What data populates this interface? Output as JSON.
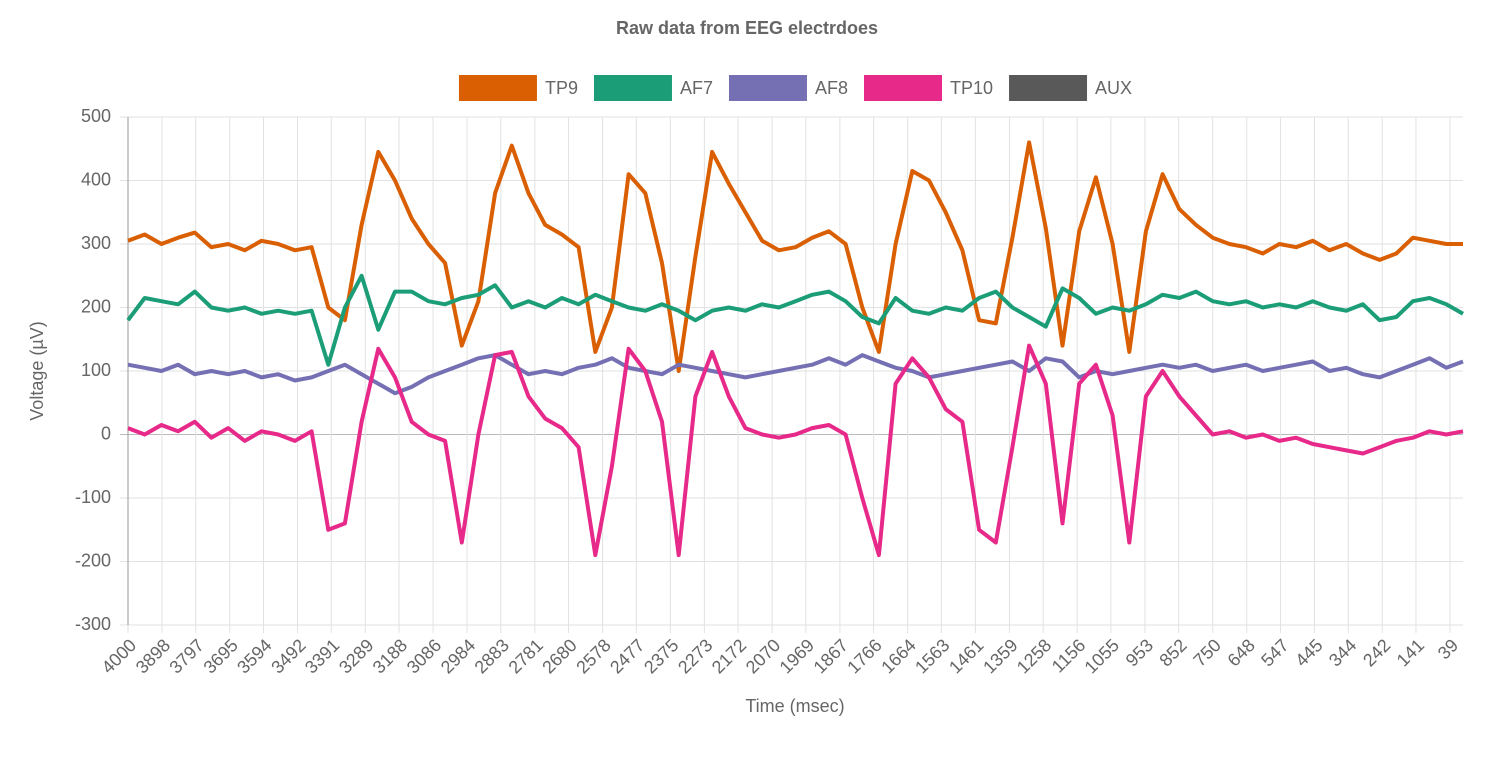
{
  "chart_data": {
    "type": "line",
    "title": "Raw data from EEG electrdoes",
    "x_label": "Time (msec)",
    "y_label": "Voltage (µV)",
    "x": [
      4000,
      3950,
      3900,
      3850,
      3800,
      3750,
      3700,
      3650,
      3600,
      3550,
      3500,
      3450,
      3400,
      3350,
      3300,
      3250,
      3200,
      3150,
      3100,
      3050,
      3000,
      2950,
      2900,
      2850,
      2800,
      2750,
      2700,
      2650,
      2600,
      2550,
      2500,
      2450,
      2400,
      2350,
      2300,
      2250,
      2200,
      2150,
      2100,
      2050,
      2000,
      1950,
      1900,
      1850,
      1800,
      1750,
      1700,
      1650,
      1600,
      1550,
      1500,
      1450,
      1400,
      1350,
      1300,
      1250,
      1200,
      1150,
      1100,
      1050,
      1000,
      950,
      900,
      850,
      800,
      750,
      700,
      650,
      600,
      550,
      500,
      450,
      400,
      350,
      300,
      250,
      200,
      150,
      100,
      50,
      0
    ],
    "xlim": [
      4000,
      0
    ],
    "xticks": [
      4000,
      3898,
      3797,
      3695,
      3594,
      3492,
      3391,
      3289,
      3188,
      3086,
      2984,
      2883,
      2781,
      2680,
      2578,
      2477,
      2375,
      2273,
      2172,
      2070,
      1969,
      1867,
      1766,
      1664,
      1563,
      1461,
      1359,
      1258,
      1156,
      1055,
      953,
      852,
      750,
      648,
      547,
      445,
      344,
      242,
      141,
      39
    ],
    "ylim": [
      -300,
      500
    ],
    "yticks": [
      -300,
      -200,
      -100,
      0,
      100,
      200,
      300,
      400,
      500
    ],
    "grid": true,
    "legend": "top",
    "series": [
      {
        "name": "TP9",
        "color": "#d95f02",
        "values": [
          305,
          315,
          300,
          310,
          318,
          295,
          300,
          290,
          305,
          300,
          290,
          295,
          200,
          180,
          330,
          445,
          400,
          340,
          300,
          270,
          140,
          210,
          380,
          455,
          380,
          330,
          315,
          295,
          130,
          200,
          410,
          380,
          270,
          100,
          280,
          445,
          395,
          350,
          305,
          290,
          295,
          310,
          320,
          300,
          200,
          130,
          300,
          415,
          400,
          350,
          290,
          180,
          175,
          310,
          460,
          325,
          140,
          320,
          405,
          300,
          130,
          320,
          410,
          355,
          330,
          310,
          300,
          295,
          285,
          300,
          295,
          305,
          290,
          300,
          285,
          275,
          285,
          310,
          305,
          300,
          300
        ]
      },
      {
        "name": "AF7",
        "color": "#1b9e77",
        "values": [
          180,
          215,
          210,
          205,
          225,
          200,
          195,
          200,
          190,
          195,
          190,
          195,
          110,
          200,
          250,
          165,
          225,
          225,
          210,
          205,
          215,
          220,
          235,
          200,
          210,
          200,
          215,
          205,
          220,
          210,
          200,
          195,
          205,
          195,
          180,
          195,
          200,
          195,
          205,
          200,
          210,
          220,
          225,
          210,
          185,
          175,
          215,
          195,
          190,
          200,
          195,
          215,
          225,
          200,
          185,
          170,
          230,
          215,
          190,
          200,
          195,
          205,
          220,
          215,
          225,
          210,
          205,
          210,
          200,
          205,
          200,
          210,
          200,
          195,
          205,
          180,
          185,
          210,
          215,
          205,
          190
        ]
      },
      {
        "name": "AF8",
        "color": "#7570b3",
        "values": [
          110,
          105,
          100,
          110,
          95,
          100,
          95,
          100,
          90,
          95,
          85,
          90,
          100,
          110,
          95,
          80,
          65,
          75,
          90,
          100,
          110,
          120,
          125,
          110,
          95,
          100,
          95,
          105,
          110,
          120,
          105,
          100,
          95,
          110,
          105,
          100,
          95,
          90,
          95,
          100,
          105,
          110,
          120,
          110,
          125,
          115,
          105,
          100,
          90,
          95,
          100,
          105,
          110,
          115,
          100,
          120,
          115,
          90,
          100,
          95,
          100,
          105,
          110,
          105,
          110,
          100,
          105,
          110,
          100,
          105,
          110,
          115,
          100,
          105,
          95,
          90,
          100,
          110,
          120,
          105,
          115
        ]
      },
      {
        "name": "TP10",
        "color": "#e7298a",
        "values": [
          10,
          0,
          15,
          5,
          20,
          -5,
          10,
          -10,
          5,
          0,
          -10,
          5,
          -150,
          -140,
          20,
          135,
          90,
          20,
          0,
          -10,
          -170,
          0,
          125,
          130,
          60,
          25,
          10,
          -20,
          -190,
          -50,
          135,
          100,
          20,
          -190,
          60,
          130,
          60,
          10,
          0,
          -5,
          0,
          10,
          15,
          0,
          -100,
          -190,
          80,
          120,
          90,
          40,
          20,
          -150,
          -170,
          -20,
          140,
          80,
          -140,
          80,
          110,
          30,
          -170,
          60,
          100,
          60,
          30,
          0,
          5,
          -5,
          0,
          -10,
          -5,
          -15,
          -20,
          -25,
          -30,
          -20,
          -10,
          -5,
          5,
          0,
          5
        ]
      },
      {
        "name": "AUX",
        "color": "#595959",
        "values": [
          null,
          null,
          null,
          null,
          null,
          null,
          null,
          null,
          null,
          null,
          null,
          null,
          null,
          null,
          null,
          null,
          null,
          null,
          null,
          null,
          null,
          null,
          null,
          null,
          null,
          null,
          null,
          null,
          null,
          null,
          null,
          null,
          null,
          null,
          null,
          null,
          null,
          null,
          null,
          null,
          null,
          null,
          null,
          null,
          null,
          null,
          null,
          null,
          null,
          null,
          null,
          null,
          null,
          null,
          null,
          null,
          null,
          null,
          null,
          null,
          null,
          null,
          null,
          null,
          null,
          null,
          null,
          null,
          null,
          null,
          null,
          null,
          null,
          null,
          null,
          null,
          null,
          null,
          null,
          null,
          null
        ]
      }
    ]
  }
}
